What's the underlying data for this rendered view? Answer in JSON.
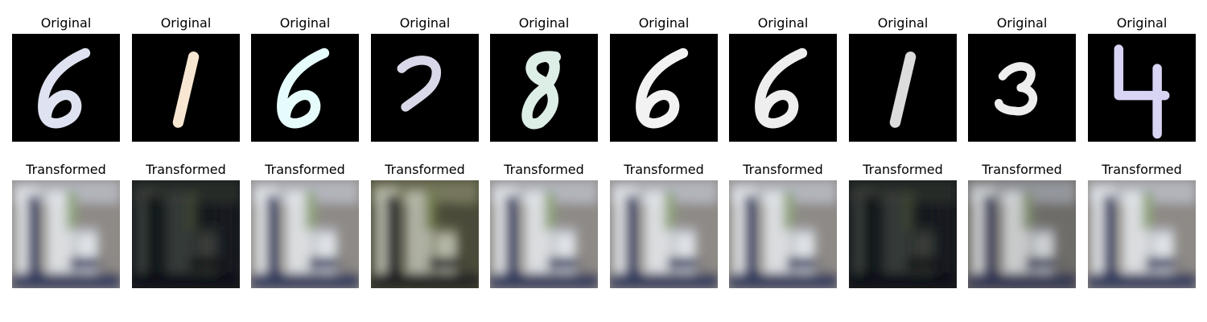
{
  "rows": [
    {
      "title": "Original",
      "panels": [
        {
          "digit": "6",
          "color": "#dfe2f0"
        },
        {
          "digit": "1",
          "color": "#f7e6d2"
        },
        {
          "digit": "6",
          "color": "#e6fbfb"
        },
        {
          "digit": "7",
          "color": "#d8d8e8"
        },
        {
          "digit": "8",
          "color": "#dceee6"
        },
        {
          "digit": "6",
          "color": "#f2f2f2"
        },
        {
          "digit": "6",
          "color": "#eeeeee"
        },
        {
          "digit": "1",
          "color": "#dcdcdc"
        },
        {
          "digit": "3",
          "color": "#eeeeee"
        },
        {
          "digit": "4",
          "color": "#d8d4f4"
        }
      ]
    },
    {
      "title": "Transformed",
      "panels": [
        {
          "variant": "bright"
        },
        {
          "variant": "dark"
        },
        {
          "variant": "bright"
        },
        {
          "variant": "olive"
        },
        {
          "variant": "bright"
        },
        {
          "variant": "bright"
        },
        {
          "variant": "bright"
        },
        {
          "variant": "dark"
        },
        {
          "variant": "mid"
        },
        {
          "variant": "bright"
        }
      ]
    }
  ]
}
